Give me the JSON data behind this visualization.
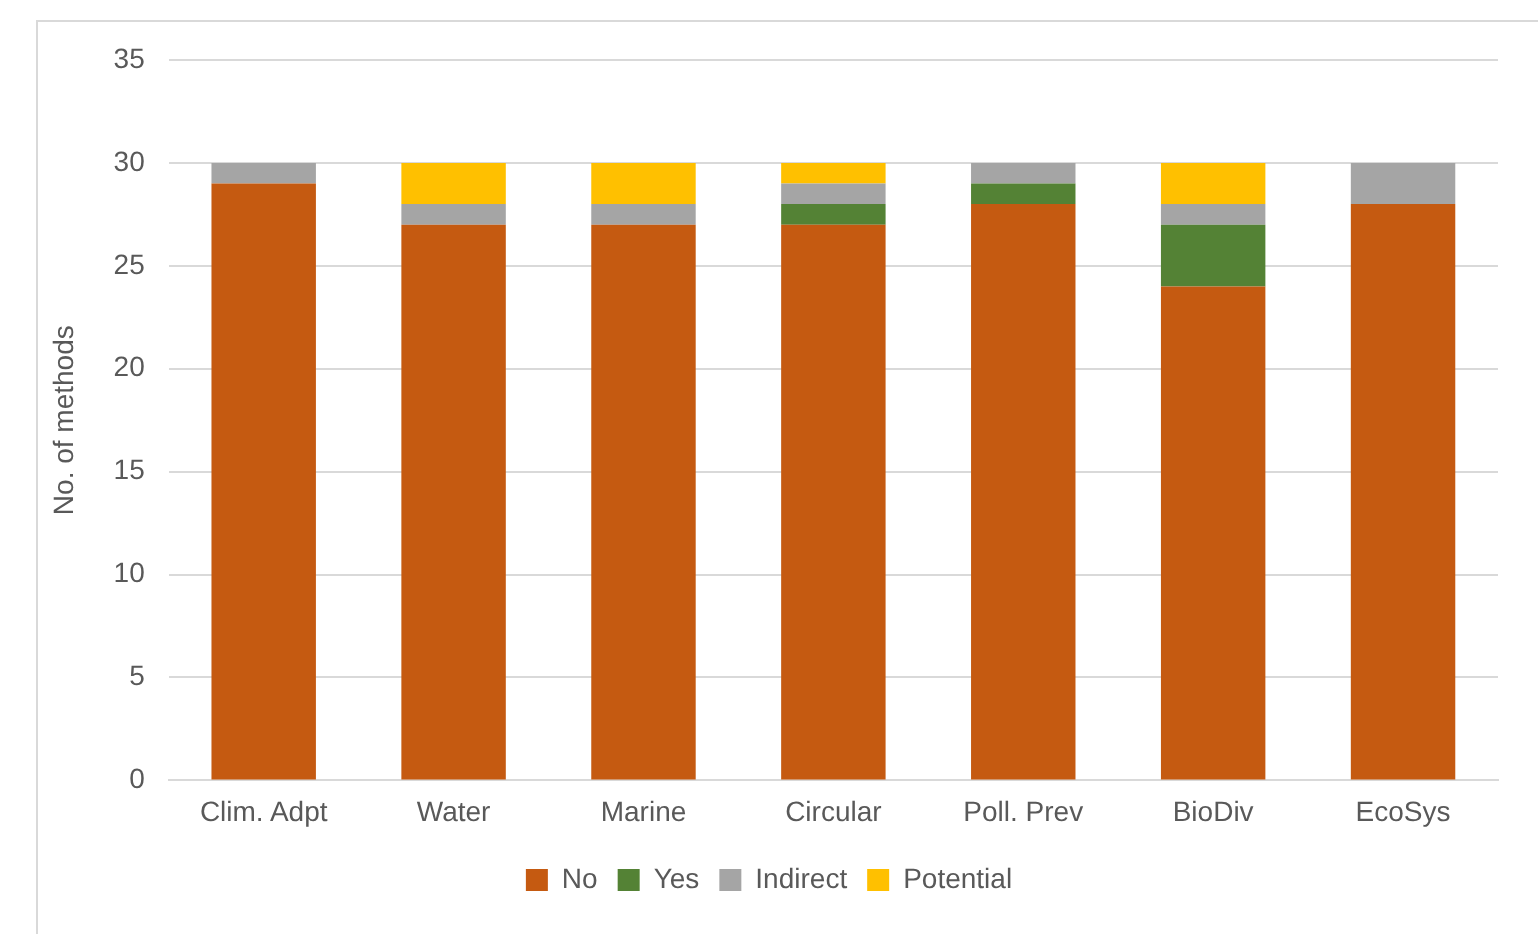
{
  "chart_data": {
    "type": "bar",
    "stacked": true,
    "ylabel": "No. of methods",
    "categories": [
      "Clim. Adpt",
      "Water",
      "Marine",
      "Circular",
      "Poll. Prev",
      "BioDiv",
      "EcoSys"
    ],
    "series": [
      {
        "name": "No",
        "color": "#c55a11",
        "values": [
          29,
          27,
          27,
          27,
          28,
          24,
          28
        ]
      },
      {
        "name": "Yes",
        "color": "#548235",
        "values": [
          0,
          0,
          0,
          1,
          1,
          3,
          0
        ]
      },
      {
        "name": "Indirect",
        "color": "#a5a5a5",
        "values": [
          1,
          1,
          1,
          1,
          1,
          1,
          2
        ]
      },
      {
        "name": "Potential",
        "color": "#ffc000",
        "values": [
          0,
          2,
          2,
          1,
          0,
          2,
          0
        ]
      }
    ],
    "ylim": [
      0,
      35
    ],
    "yticks": [
      0,
      5,
      10,
      15,
      20,
      25,
      30,
      35
    ],
    "grid": "y",
    "legend": "bottom"
  }
}
